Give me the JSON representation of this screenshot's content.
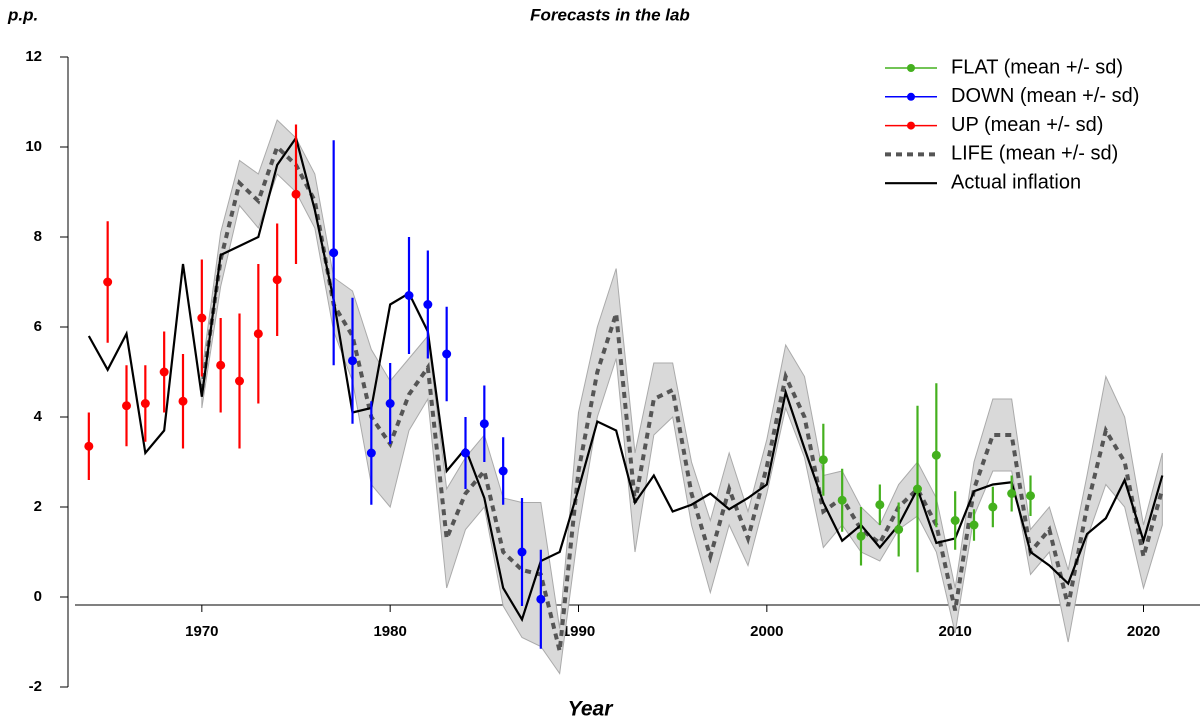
{
  "chart_data": {
    "type": "line",
    "title": "Forecasts in the lab",
    "y_label": "p.p.",
    "x_label": "Year",
    "xlim": [
      1963,
      2023
    ],
    "ylim": [
      -2,
      12
    ],
    "xticks": [
      1970,
      1980,
      1990,
      2000,
      2010,
      2020
    ],
    "yticks": [
      -2,
      0,
      2,
      4,
      6,
      8,
      10,
      12
    ],
    "legend": "top-right",
    "series": [
      {
        "name": "FLAT (mean +/- sd)",
        "color": "#44b01e",
        "style": "points",
        "x": [
          2003,
          2004,
          2005,
          2006,
          2007,
          2008,
          2009,
          2010,
          2011,
          2012,
          2013,
          2014
        ],
        "values": [
          3.05,
          2.15,
          1.35,
          2.05,
          1.5,
          2.4,
          3.15,
          1.7,
          1.6,
          2.0,
          2.3,
          2.25
        ],
        "errors": [
          0.8,
          0.7,
          0.65,
          0.45,
          0.6,
          1.85,
          1.6,
          0.65,
          0.35,
          0.45,
          0.4,
          0.45
        ]
      },
      {
        "name": "DOWN (mean +/- sd)",
        "color": "#0000ff",
        "style": "points",
        "x": [
          1977,
          1978,
          1979,
          1980,
          1981,
          1982,
          1983,
          1984,
          1985,
          1986,
          1987,
          1988
        ],
        "values": [
          7.65,
          5.25,
          3.2,
          4.3,
          6.7,
          6.5,
          5.4,
          3.2,
          3.85,
          2.8,
          1.0,
          -0.05
        ],
        "errors": [
          2.5,
          1.4,
          1.15,
          0.9,
          1.3,
          1.2,
          1.05,
          0.8,
          0.85,
          0.75,
          1.2,
          1.1
        ]
      },
      {
        "name": "UP (mean +/- sd)",
        "color": "#ff0000",
        "style": "points",
        "x": [
          1964,
          1965,
          1966,
          1967,
          1968,
          1969,
          1970,
          1971,
          1972,
          1973,
          1974,
          1975
        ],
        "values": [
          3.35,
          7.0,
          4.25,
          4.3,
          5.0,
          4.35,
          6.2,
          5.15,
          4.8,
          5.85,
          7.05,
          8.95
        ],
        "errors": [
          0.75,
          1.35,
          0.9,
          0.85,
          0.9,
          1.05,
          1.3,
          1.05,
          1.5,
          1.55,
          1.25,
          1.55
        ]
      },
      {
        "name": "LIFE (mean +/- sd)",
        "color": "#555555",
        "style": "dashed-band",
        "x": [
          1970,
          1971,
          1972,
          1973,
          1974,
          1975,
          1976,
          1977,
          1978,
          1979,
          1980,
          1981,
          1982,
          1983,
          1984,
          1985,
          1986,
          1987,
          1988,
          1989,
          1990,
          1991,
          1992,
          1993,
          1994,
          1995,
          1996,
          1997,
          1998,
          1999,
          2000,
          2001,
          2002,
          2003,
          2004,
          2005,
          2006,
          2007,
          2008,
          2009,
          2010,
          2011,
          2012,
          2013,
          2014,
          2015,
          2016,
          2017,
          2018,
          2019,
          2020,
          2021
        ],
        "values": [
          4.6,
          7.5,
          9.2,
          8.8,
          10.0,
          9.6,
          8.8,
          6.5,
          5.8,
          4.0,
          3.4,
          4.5,
          5.1,
          1.3,
          2.3,
          2.8,
          1.0,
          0.6,
          0.5,
          -1.2,
          2.8,
          5.0,
          6.3,
          2.1,
          4.4,
          4.6,
          2.3,
          0.9,
          2.4,
          1.3,
          2.9,
          4.9,
          4.0,
          1.9,
          2.2,
          1.5,
          1.2,
          2.0,
          2.4,
          1.6,
          -0.3,
          2.4,
          3.6,
          3.6,
          1.0,
          1.5,
          -0.2,
          2.0,
          3.7,
          3.0,
          0.9,
          2.4
        ],
        "errors": [
          0.4,
          0.6,
          0.5,
          0.6,
          0.6,
          0.6,
          0.6,
          0.6,
          1.0,
          1.5,
          1.4,
          0.8,
          0.7,
          1.1,
          0.8,
          0.8,
          1.2,
          1.5,
          1.6,
          0.5,
          1.3,
          1.0,
          1.0,
          1.1,
          0.8,
          0.6,
          0.7,
          0.8,
          0.8,
          0.6,
          0.6,
          0.7,
          0.9,
          0.8,
          0.6,
          0.5,
          0.4,
          0.5,
          0.6,
          0.6,
          0.5,
          0.6,
          0.8,
          0.8,
          0.5,
          0.5,
          0.8,
          0.7,
          1.2,
          1.0,
          0.7,
          0.8
        ]
      },
      {
        "name": "Actual inflation",
        "color": "#000000",
        "style": "line",
        "x": [
          1964,
          1965,
          1966,
          1967,
          1968,
          1969,
          1970,
          1971,
          1972,
          1973,
          1974,
          1975,
          1976,
          1977,
          1978,
          1979,
          1980,
          1981,
          1982,
          1983,
          1984,
          1985,
          1986,
          1987,
          1988,
          1989,
          1990,
          1991,
          1992,
          1993,
          1994,
          1995,
          1996,
          1997,
          1998,
          1999,
          2000,
          2001,
          2002,
          2003,
          2004,
          2005,
          2006,
          2007,
          2008,
          2009,
          2010,
          2011,
          2012,
          2013,
          2014,
          2015,
          2016,
          2017,
          2018,
          2019,
          2020,
          2021
        ],
        "values": [
          5.8,
          5.05,
          5.85,
          3.2,
          3.7,
          7.4,
          4.45,
          7.6,
          7.8,
          8.0,
          9.6,
          10.2,
          8.6,
          6.6,
          4.1,
          4.2,
          6.5,
          6.75,
          5.9,
          2.8,
          3.3,
          2.2,
          0.2,
          -0.5,
          0.8,
          1.0,
          2.4,
          3.9,
          3.7,
          2.1,
          2.7,
          1.9,
          2.05,
          2.3,
          1.95,
          2.2,
          2.5,
          4.55,
          3.3,
          2.1,
          1.25,
          1.6,
          1.1,
          1.6,
          2.4,
          1.2,
          1.3,
          2.35,
          2.5,
          2.55,
          1.0,
          0.7,
          0.3,
          1.4,
          1.75,
          2.6,
          1.25,
          2.7
        ]
      }
    ]
  }
}
